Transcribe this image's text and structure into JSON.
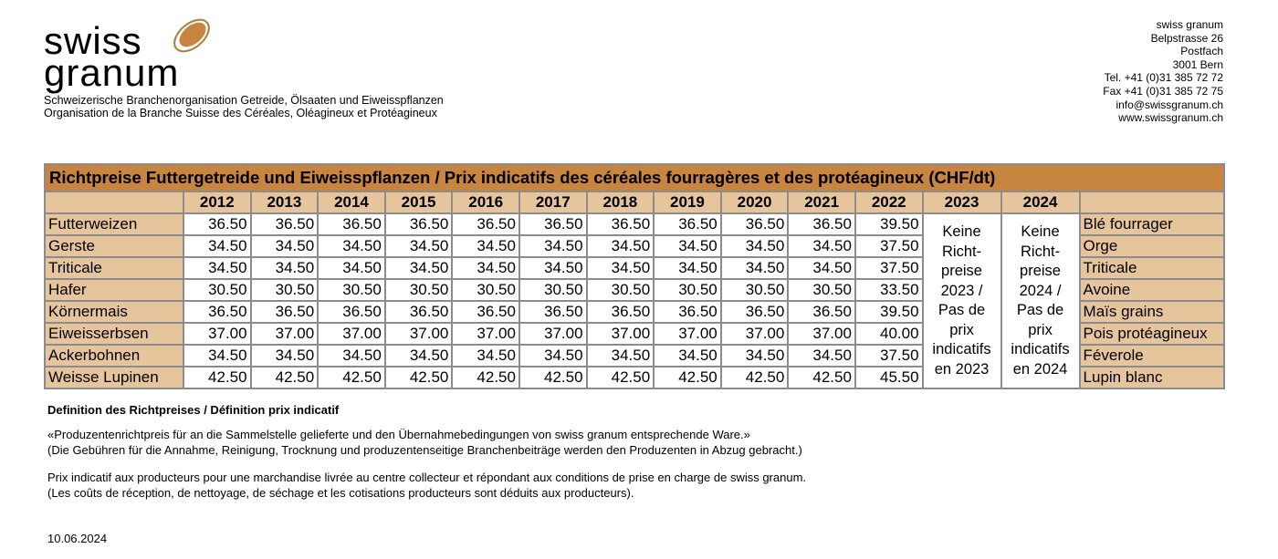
{
  "header": {
    "logo_line1": "swiss",
    "logo_line2": "granum",
    "tagline_de": "Schweizerische Branchenorganisation Getreide, Ölsaaten und Eiweisspflanzen",
    "tagline_fr": "Organisation de la Branche Suisse des Céréales, Oléagineux et Protéagineux",
    "address": [
      "swiss granum",
      "Belpstrasse 26",
      "Postfach",
      "3001 Bern",
      "Tel. +41 (0)31 385 72 72",
      "Fax +41 (0)31 385 72 75",
      "info@swissgranum.ch",
      "www.swissgranum.ch"
    ],
    "brand_color": "#c8853f"
  },
  "table": {
    "title": "Richtpreise Futtergetreide und Eiweisspflanzen / Prix indicatifs des céréales fourragères et des protéagineux (CHF/dt)",
    "years": [
      "2012",
      "2013",
      "2014",
      "2015",
      "2016",
      "2017",
      "2018",
      "2019",
      "2020",
      "2021",
      "2022",
      "2023",
      "2024"
    ],
    "note_2023": [
      "Keine",
      "Richt-",
      "preise",
      "2023 /",
      "Pas de",
      "prix",
      "indicatifs",
      "en 2023"
    ],
    "note_2024": [
      "Keine",
      "Richt-",
      "preise",
      "2024 /",
      "Pas de",
      "prix",
      "indicatifs",
      "en 2024"
    ],
    "rows": [
      {
        "de": "Futterweizen",
        "fr": "Blé fourrager",
        "values": [
          "36.50",
          "36.50",
          "36.50",
          "36.50",
          "36.50",
          "36.50",
          "36.50",
          "36.50",
          "36.50",
          "36.50",
          "39.50"
        ]
      },
      {
        "de": "Gerste",
        "fr": "Orge",
        "values": [
          "34.50",
          "34.50",
          "34.50",
          "34.50",
          "34.50",
          "34.50",
          "34.50",
          "34.50",
          "34.50",
          "34.50",
          "37.50"
        ]
      },
      {
        "de": "Triticale",
        "fr": "Triticale",
        "values": [
          "34.50",
          "34.50",
          "34.50",
          "34.50",
          "34.50",
          "34.50",
          "34.50",
          "34.50",
          "34.50",
          "34.50",
          "37.50"
        ]
      },
      {
        "de": "Hafer",
        "fr": "Avoine",
        "values": [
          "30.50",
          "30.50",
          "30.50",
          "30.50",
          "30.50",
          "30.50",
          "30.50",
          "30.50",
          "30.50",
          "30.50",
          "33.50"
        ]
      },
      {
        "de": "Körnermais",
        "fr": "Maïs grains",
        "values": [
          "36.50",
          "36.50",
          "36.50",
          "36.50",
          "36.50",
          "36.50",
          "36.50",
          "36.50",
          "36.50",
          "36.50",
          "39.50"
        ]
      },
      {
        "de": "Eiweisserbsen",
        "fr": "Pois protéagineux",
        "values": [
          "37.00",
          "37.00",
          "37.00",
          "37.00",
          "37.00",
          "37.00",
          "37.00",
          "37.00",
          "37.00",
          "37.00",
          "40.00"
        ]
      },
      {
        "de": "Ackerbohnen",
        "fr": "Féverole",
        "values": [
          "34.50",
          "34.50",
          "34.50",
          "34.50",
          "34.50",
          "34.50",
          "34.50",
          "34.50",
          "34.50",
          "34.50",
          "37.50"
        ]
      },
      {
        "de": "Weisse Lupinen",
        "fr": "Lupin blanc",
        "values": [
          "42.50",
          "42.50",
          "42.50",
          "42.50",
          "42.50",
          "42.50",
          "42.50",
          "42.50",
          "42.50",
          "42.50",
          "45.50"
        ]
      }
    ]
  },
  "definition": {
    "heading": "Definition des Richtpreises / Définition prix indicatif",
    "de_1": "«Produzentenrichtpreis für an die Sammelstelle gelieferte und den Übernahmebedingungen von swiss granum entsprechende Ware.»",
    "de_2": "(Die Gebühren für die Annahme, Reinigung, Trocknung und produzentenseitige Branchenbeiträge werden den Produzenten in Abzug gebracht.)",
    "fr_1": "Prix indicatif aux producteurs pour une marchandise livrée au centre collecteur et répondant aux conditions de prise en charge de swiss granum.",
    "fr_2": "(Les coûts de réception, de nettoyage, de séchage et les cotisations producteurs sont déduits aux producteurs)."
  },
  "date": "10.06.2024"
}
